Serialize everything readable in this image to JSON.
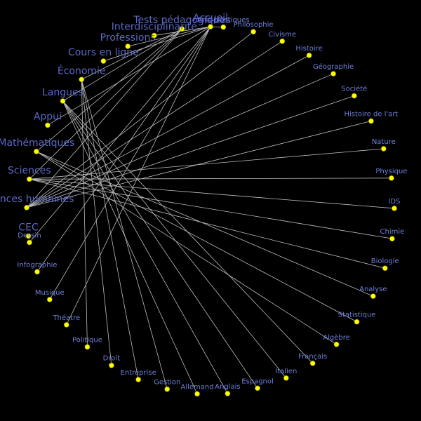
{
  "colors": {
    "background": "#000000",
    "node": "#ffff00",
    "edge": "#bdbdbd",
    "label_small": "#6f7fd8",
    "label_big": "#5b68c4"
  },
  "diagram": {
    "type": "radial-network",
    "categories": [
      "Accueil",
      "Tests pédagogiques",
      "Interdisciplinarité",
      "Professions",
      "Cours en ligne",
      "Économie",
      "Langues",
      "Appui",
      "Mathématiques",
      "Sciences",
      "Sciences humaines",
      "CEC"
    ],
    "topics": [
      "Arts plastiques",
      "Philosophie",
      "Civisme",
      "Histoire",
      "Géographie",
      "Société",
      "Histoire de l'art",
      "Nature",
      "Physique",
      "IDS",
      "Chimie",
      "Biologie",
      "Analyse",
      "Statistique",
      "Algèbre",
      "Français",
      "Italien",
      "Espagnol",
      "Anglais",
      "Allemand",
      "Gestion",
      "Entreprise",
      "Droit",
      "Politique",
      "Théatre",
      "Musique",
      "Infographie",
      "Dessin"
    ],
    "edges": [
      [
        "Sciences humaines",
        "Philosophie"
      ],
      [
        "Sciences humaines",
        "Civisme"
      ],
      [
        "Sciences humaines",
        "Histoire"
      ],
      [
        "Sciences humaines",
        "Géographie"
      ],
      [
        "Sciences humaines",
        "Société"
      ],
      [
        "Sciences humaines",
        "Histoire de l'art"
      ],
      [
        "Sciences",
        "Nature"
      ],
      [
        "Sciences",
        "Physique"
      ],
      [
        "Sciences",
        "IDS"
      ],
      [
        "Sciences",
        "Chimie"
      ],
      [
        "Sciences",
        "Biologie"
      ],
      [
        "Mathématiques",
        "Analyse"
      ],
      [
        "Mathématiques",
        "Statistique"
      ],
      [
        "Mathématiques",
        "Algèbre"
      ],
      [
        "Langues",
        "Français"
      ],
      [
        "Langues",
        "Italien"
      ],
      [
        "Langues",
        "Espagnol"
      ],
      [
        "Langues",
        "Anglais"
      ],
      [
        "Langues",
        "Allemand"
      ],
      [
        "Économie",
        "Gestion"
      ],
      [
        "Économie",
        "Entreprise"
      ],
      [
        "Économie",
        "Droit"
      ],
      [
        "Économie",
        "Politique"
      ],
      [
        "Accueil",
        "Arts plastiques"
      ],
      [
        "Accueil",
        "Théatre"
      ],
      [
        "Accueil",
        "Musique"
      ],
      [
        "Accueil",
        "Infographie"
      ],
      [
        "Accueil",
        "Dessin"
      ],
      [
        "Tests pédagogiques",
        "Sciences humaines"
      ],
      [
        "Tests pédagogiques",
        "Sciences"
      ],
      [
        "Tests pédagogiques",
        "Mathématiques"
      ],
      [
        "Tests pédagogiques",
        "Langues"
      ],
      [
        "Tests pédagogiques",
        "Économie"
      ],
      [
        "Accueil",
        "Interdisciplinarité"
      ],
      [
        "Accueil",
        "Professions"
      ],
      [
        "Accueil",
        "Cours en ligne"
      ],
      [
        "Accueil",
        "Appui"
      ]
    ]
  }
}
